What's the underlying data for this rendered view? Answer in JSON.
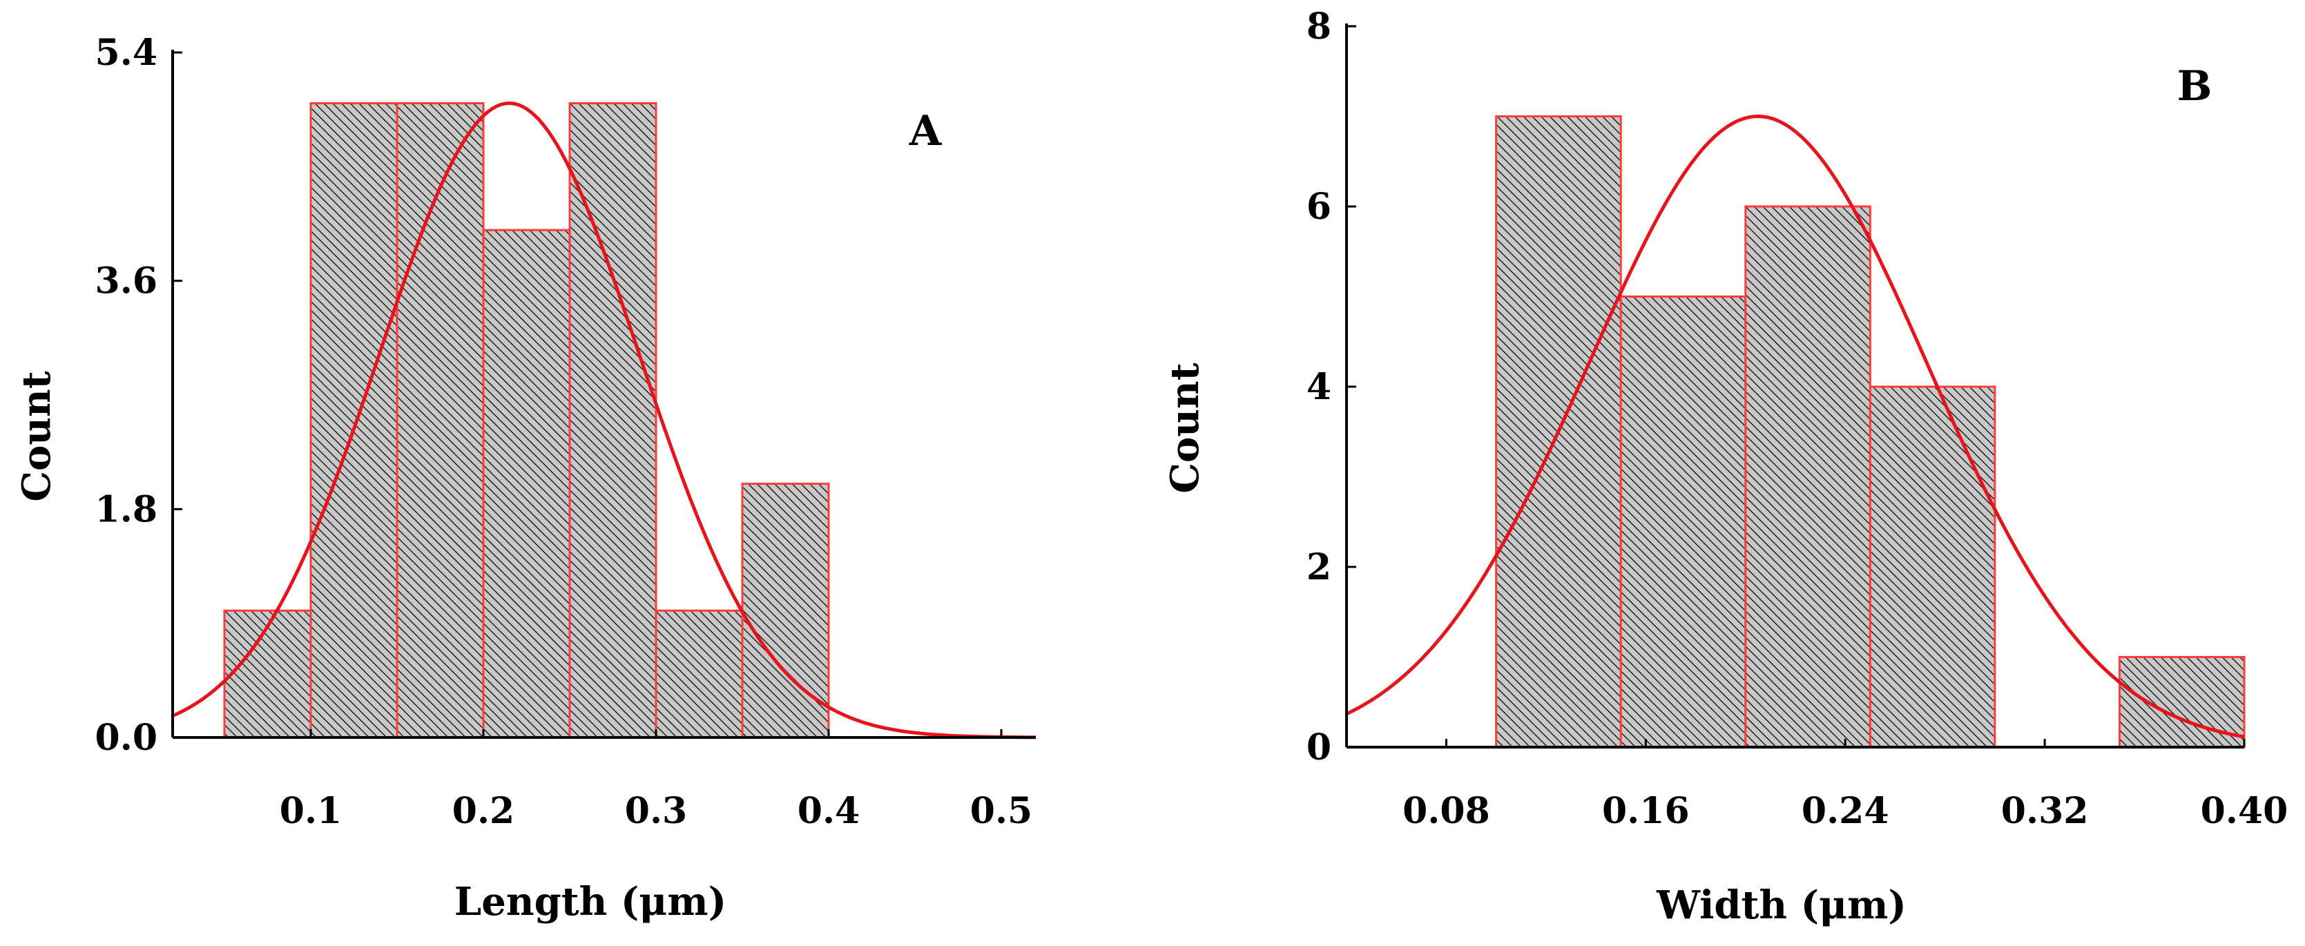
{
  "colors": {
    "bar_edge": "#ff3b3b",
    "fit_line": "#e8141c",
    "hatch_bg": "#c8c8c8",
    "hatch_line": "#202020",
    "axis": "#000000"
  },
  "chart_data": [
    {
      "id": "A",
      "type": "bar",
      "subtype": "histogram-with-normal-fit",
      "panel_label": "A",
      "title": "",
      "xlabel": "Length (μm)",
      "ylabel": "Count",
      "xlim": [
        0.02,
        0.52
      ],
      "ylim": [
        0,
        5.4
      ],
      "xticks": [
        0.1,
        0.2,
        0.3,
        0.4,
        0.5
      ],
      "xtick_labels": [
        "0.1",
        "0.2",
        "0.3",
        "0.4",
        "0.5"
      ],
      "yticks": [
        0,
        1.8,
        3.6,
        5.4
      ],
      "ytick_labels": [
        "0.0",
        "1.8",
        "3.6",
        "5.4"
      ],
      "bin_edges": [
        0.05,
        0.1,
        0.15,
        0.2,
        0.25,
        0.3,
        0.35,
        0.4
      ],
      "values": [
        1,
        5,
        5,
        4,
        5,
        1,
        2
      ],
      "fit": {
        "type": "normal",
        "mean": 0.215,
        "sd": 0.075,
        "peak": 5.0
      }
    },
    {
      "id": "B",
      "type": "bar",
      "subtype": "histogram-with-normal-fit",
      "panel_label": "B",
      "title": "",
      "xlabel": "Width (μm)",
      "ylabel": "Count",
      "xlim": [
        0.04,
        0.4
      ],
      "ylim": [
        0,
        8
      ],
      "xticks": [
        0.08,
        0.16,
        0.24,
        0.32,
        0.4
      ],
      "xtick_labels": [
        "0.08",
        "0.16",
        "0.24",
        "0.32",
        "0.40"
      ],
      "yticks": [
        0,
        2,
        4,
        6,
        8
      ],
      "ytick_labels": [
        "0",
        "2",
        "4",
        "6",
        "8"
      ],
      "bin_edges": [
        0.1,
        0.15,
        0.2,
        0.25,
        0.3,
        0.35,
        0.4
      ],
      "values": [
        7,
        5,
        6,
        4,
        0,
        1
      ],
      "fit": {
        "type": "normal",
        "mean": 0.205,
        "sd": 0.068,
        "peak": 7.0
      }
    }
  ]
}
